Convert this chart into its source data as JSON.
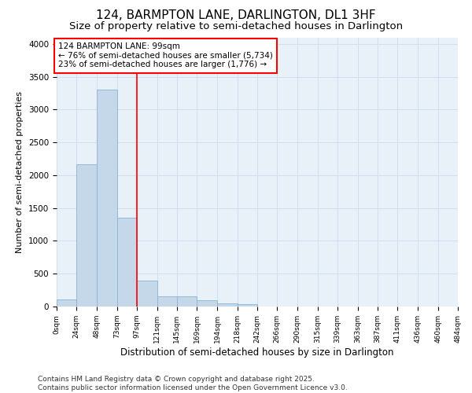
{
  "title": "124, BARMPTON LANE, DARLINGTON, DL1 3HF",
  "subtitle": "Size of property relative to semi-detached houses in Darlington",
  "xlabel": "Distribution of semi-detached houses by size in Darlington",
  "ylabel": "Number of semi-detached properties",
  "bar_values": [
    110,
    2170,
    3300,
    1350,
    390,
    160,
    155,
    90,
    50,
    35,
    0,
    0,
    0,
    0,
    0,
    0,
    0,
    0,
    0,
    0
  ],
  "bin_edges": [
    0,
    24,
    48,
    73,
    97,
    121,
    145,
    169,
    194,
    218,
    242,
    266,
    290,
    315,
    339,
    363,
    387,
    411,
    436,
    460,
    484
  ],
  "bin_labels": [
    "0sqm",
    "24sqm",
    "48sqm",
    "73sqm",
    "97sqm",
    "121sqm",
    "145sqm",
    "169sqm",
    "194sqm",
    "218sqm",
    "242sqm",
    "266sqm",
    "290sqm",
    "315sqm",
    "339sqm",
    "363sqm",
    "387sqm",
    "411sqm",
    "436sqm",
    "460sqm",
    "484sqm"
  ],
  "bar_color": "#c5d8ea",
  "bar_edge_color": "#8ab4d4",
  "grid_color": "#d0dff0",
  "background_color": "#e8f0f8",
  "red_line_x": 97,
  "annotation_text": "124 BARMPTON LANE: 99sqm\n← 76% of semi-detached houses are smaller (5,734)\n23% of semi-detached houses are larger (1,776) →",
  "ylim": [
    0,
    4100
  ],
  "footnote": "Contains HM Land Registry data © Crown copyright and database right 2025.\nContains public sector information licensed under the Open Government Licence v3.0.",
  "title_fontsize": 11,
  "subtitle_fontsize": 9.5,
  "xlabel_fontsize": 8.5,
  "ylabel_fontsize": 8,
  "annotation_fontsize": 7.5,
  "footnote_fontsize": 6.5
}
